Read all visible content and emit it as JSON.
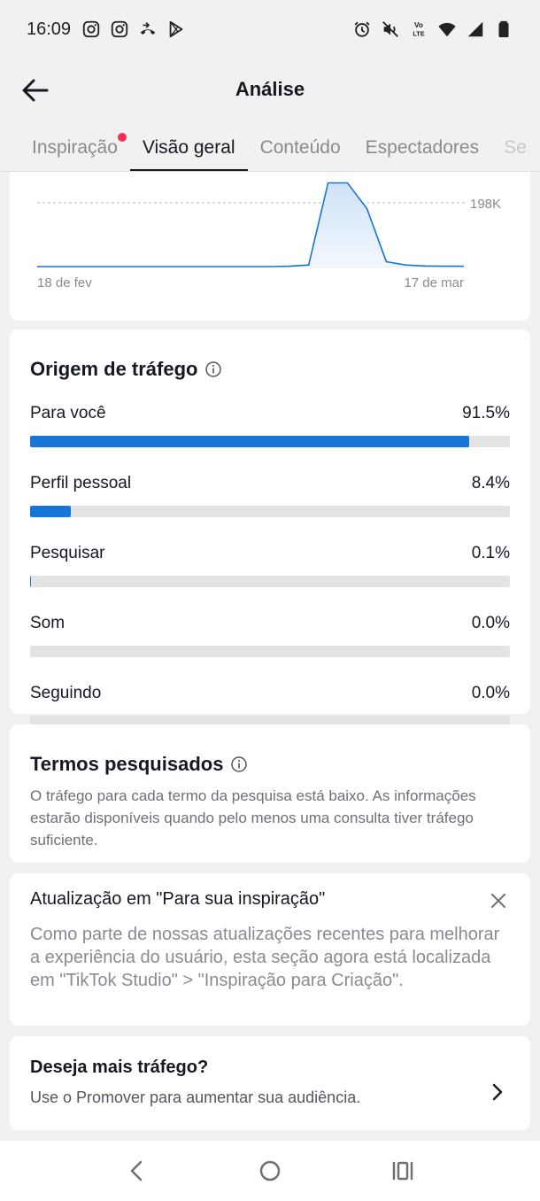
{
  "status_bar": {
    "time": "16:09",
    "left_icons": [
      "instagram-icon",
      "instagram-icon",
      "call-forward-icon",
      "play-store-icon"
    ],
    "right_icons": [
      "alarm-icon",
      "vibrate-off-icon",
      "volte-icon",
      "wifi-icon",
      "signal-icon",
      "battery-icon"
    ],
    "volte_text": "Vo LTE"
  },
  "header": {
    "title": "Análise"
  },
  "tabs": [
    {
      "label": "Inspiração",
      "active": false,
      "has_dot": true
    },
    {
      "label": "Visão geral",
      "active": true
    },
    {
      "label": "Conteúdo",
      "active": false
    },
    {
      "label": "Espectadores",
      "active": false
    },
    {
      "label": "Se",
      "active": false
    }
  ],
  "chart_data": {
    "type": "area",
    "x_labels": [
      "18 de fev",
      "17 de mar"
    ],
    "reference_line": {
      "value": 198000,
      "label": "198K"
    },
    "series": [
      {
        "values": [
          0,
          0,
          0,
          0,
          0,
          0,
          0,
          0,
          0,
          0,
          0,
          0,
          0,
          1000,
          5000,
          260000,
          260000,
          180000,
          15000,
          5000,
          2000,
          1000,
          1000
        ]
      }
    ],
    "ylim": [
      0,
      260000
    ]
  },
  "traffic": {
    "title": "Origem de tráfego",
    "sources": [
      {
        "label": "Para você",
        "value_text": "91.5%",
        "value": 91.5
      },
      {
        "label": "Perfil pessoal",
        "value_text": "8.4%",
        "value": 8.4
      },
      {
        "label": "Pesquisar",
        "value_text": "0.1%",
        "value": 0.1
      },
      {
        "label": "Som",
        "value_text": "0.0%",
        "value": 0.0
      },
      {
        "label": "Seguindo",
        "value_text": "0.0%",
        "value": 0.0
      }
    ]
  },
  "search_terms": {
    "title": "Termos pesquisados",
    "body": "O tráfego para cada termo da pesquisa está baixo. As informações estarão disponíveis quando pelo menos uma consulta tiver tráfego suficiente."
  },
  "update_notice": {
    "title": "Atualização em \"Para sua inspiração\"",
    "body": "Como parte de nossas atualizações recentes para melhorar a experiência do usuário, esta seção agora está localizada em \"TikTok Studio\" > \"Inspiração para Criação\"."
  },
  "promo": {
    "title": "Deseja mais tráfego?",
    "subtitle": "Use o Promover para aumentar sua audiência."
  },
  "colors": {
    "accent_blue": "#1775d8",
    "notification_dot": "#fe2c55",
    "background": "#f1f1f2"
  }
}
